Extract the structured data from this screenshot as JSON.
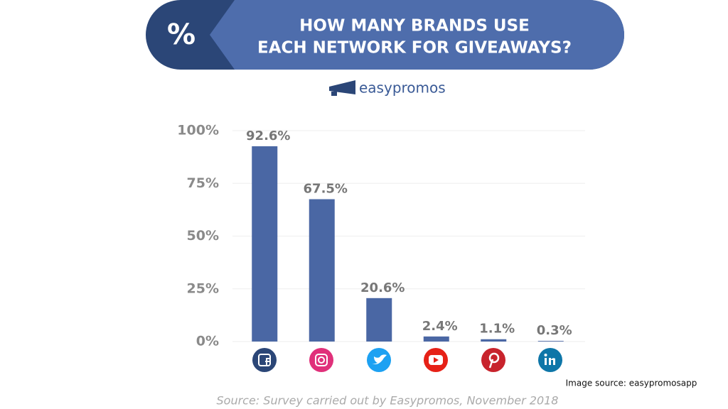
{
  "chart_data": {
    "type": "bar",
    "title_lines": [
      "HOW MANY BRANDS USE",
      "EACH NETWORK FOR GIVEAWAYS?"
    ],
    "badge": "%",
    "logo": "easypromos",
    "source": "Source: Survey carried out by Easypromos, November 2018",
    "image_source": "Image source: easypromosapp",
    "categories": [
      null,
      null,
      null,
      null,
      null,
      null
    ],
    "values": [
      92.6,
      67.5,
      20.6,
      2.4,
      1.1,
      0.3
    ],
    "value_labels": [
      "92.6%",
      "67.5%",
      "20.6%",
      "2.4%",
      "1.1%",
      "0.3%"
    ],
    "color": "#4a67a4",
    "ylim": [
      0,
      100
    ],
    "yticks": [
      {
        "value": 0,
        "label": "0%"
      },
      {
        "value": 25,
        "label": "25%"
      },
      {
        "value": 50,
        "label": "50%"
      },
      {
        "value": 75,
        "label": "75%"
      },
      {
        "value": 100,
        "label": "100%"
      }
    ],
    "grid": true
  }
}
